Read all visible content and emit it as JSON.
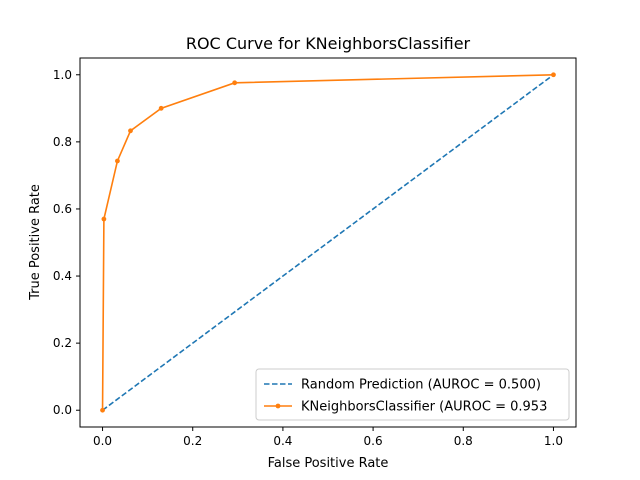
{
  "chart_data": {
    "type": "line",
    "title": "ROC Curve for KNeighborsClassifier",
    "xlabel": "False Positive Rate",
    "ylabel": "True Positive Rate",
    "xlim": [
      -0.05,
      1.05
    ],
    "ylim": [
      -0.05,
      1.05
    ],
    "xticks": [
      0.0,
      0.2,
      0.4,
      0.6,
      0.8,
      1.0
    ],
    "xtick_labels": [
      "0.0",
      "0.2",
      "0.4",
      "0.6",
      "0.8",
      "1.0"
    ],
    "yticks": [
      0.0,
      0.2,
      0.4,
      0.6,
      0.8,
      1.0
    ],
    "ytick_labels": [
      "0.0",
      "0.2",
      "0.4",
      "0.6",
      "0.8",
      "1.0"
    ],
    "grid": false,
    "legend_position": "lower-right",
    "series": [
      {
        "name": "Random Prediction (AUROC = 0.500)",
        "style": "dashed",
        "color": "#1f77b4",
        "x": [
          0.0,
          1.0
        ],
        "y": [
          0.0,
          1.0
        ]
      },
      {
        "name": "KNeighborsClassifier (AUROC = 0.953",
        "style": "solid-markers",
        "color": "#ff7f0e",
        "x": [
          0.0,
          0.003,
          0.033,
          0.062,
          0.13,
          0.293,
          1.0
        ],
        "y": [
          0.0,
          0.57,
          0.743,
          0.833,
          0.9,
          0.976,
          1.0
        ]
      }
    ]
  }
}
